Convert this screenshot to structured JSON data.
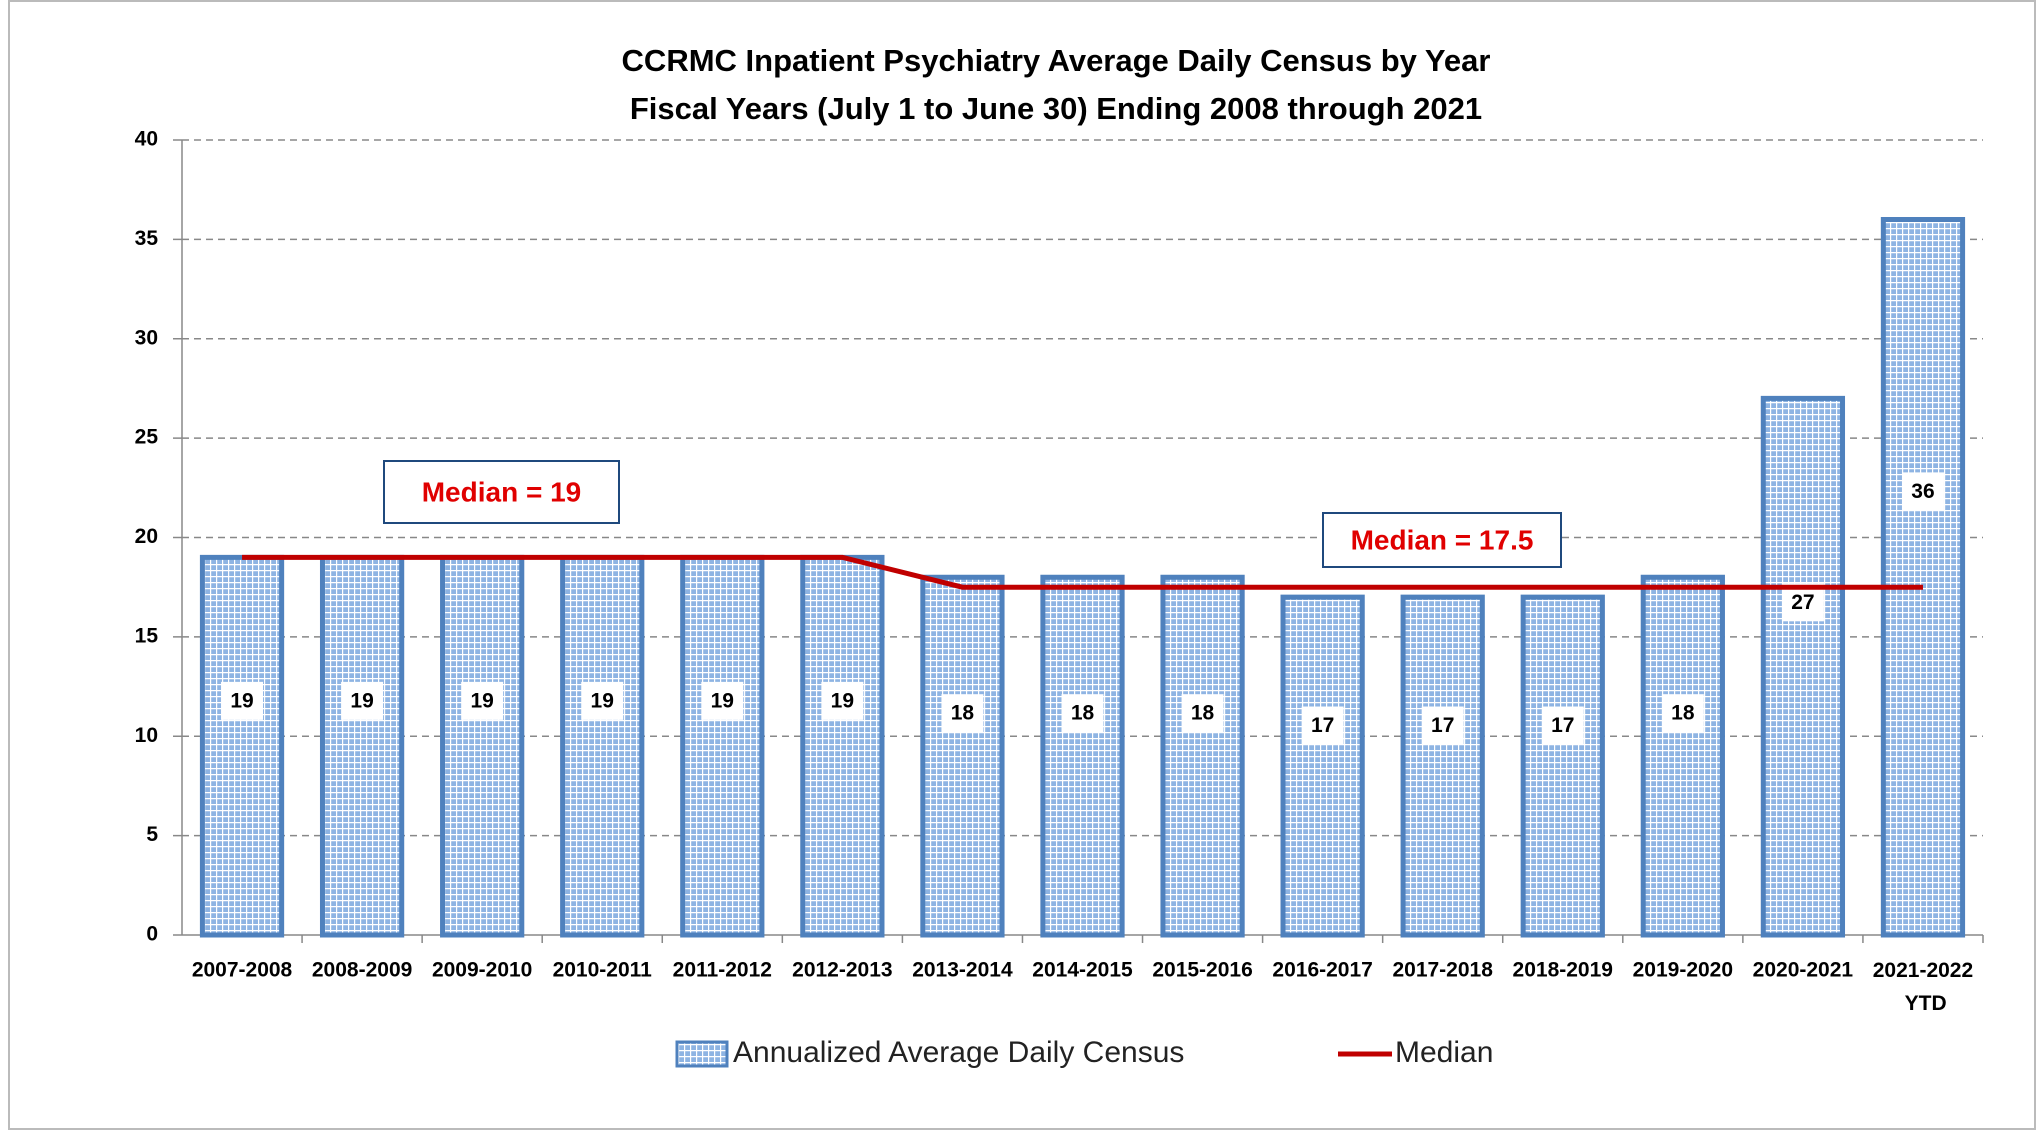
{
  "chart_data": {
    "type": "bar",
    "title": "CCRMC Inpatient Psychiatry Average Daily Census by Year",
    "subtitle": "Fiscal Years (July 1 to June 30) Ending 2008 through 2021",
    "categories": [
      "2007-2008",
      "2008-2009",
      "2009-2010",
      "2010-2011",
      "2011-2012",
      "2012-2013",
      "2013-2014",
      "2014-2015",
      "2015-2016",
      "2016-2017",
      "2017-2018",
      "2018-2019",
      "2019-2020",
      "2020-2021",
      "2021-2022 YTD"
    ],
    "series": [
      {
        "name": "Annualized Average Daily Census",
        "type": "bar",
        "color": "#4f81bd",
        "values": [
          19,
          19,
          19,
          19,
          19,
          19,
          18,
          18,
          18,
          17,
          17,
          17,
          18,
          27,
          36
        ]
      },
      {
        "name": "Median",
        "type": "line",
        "color": "#c00000",
        "values": [
          19,
          19,
          19,
          19,
          19,
          19,
          17.5,
          17.5,
          17.5,
          17.5,
          17.5,
          17.5,
          17.5,
          17.5,
          17.5
        ]
      }
    ],
    "annotations": [
      "Median = 19",
      "Median = 17.5"
    ],
    "ylim": [
      0,
      40
    ],
    "yticks": [
      0,
      5,
      10,
      15,
      20,
      25,
      30,
      35,
      40
    ],
    "grid": true,
    "legend": "bottom"
  }
}
